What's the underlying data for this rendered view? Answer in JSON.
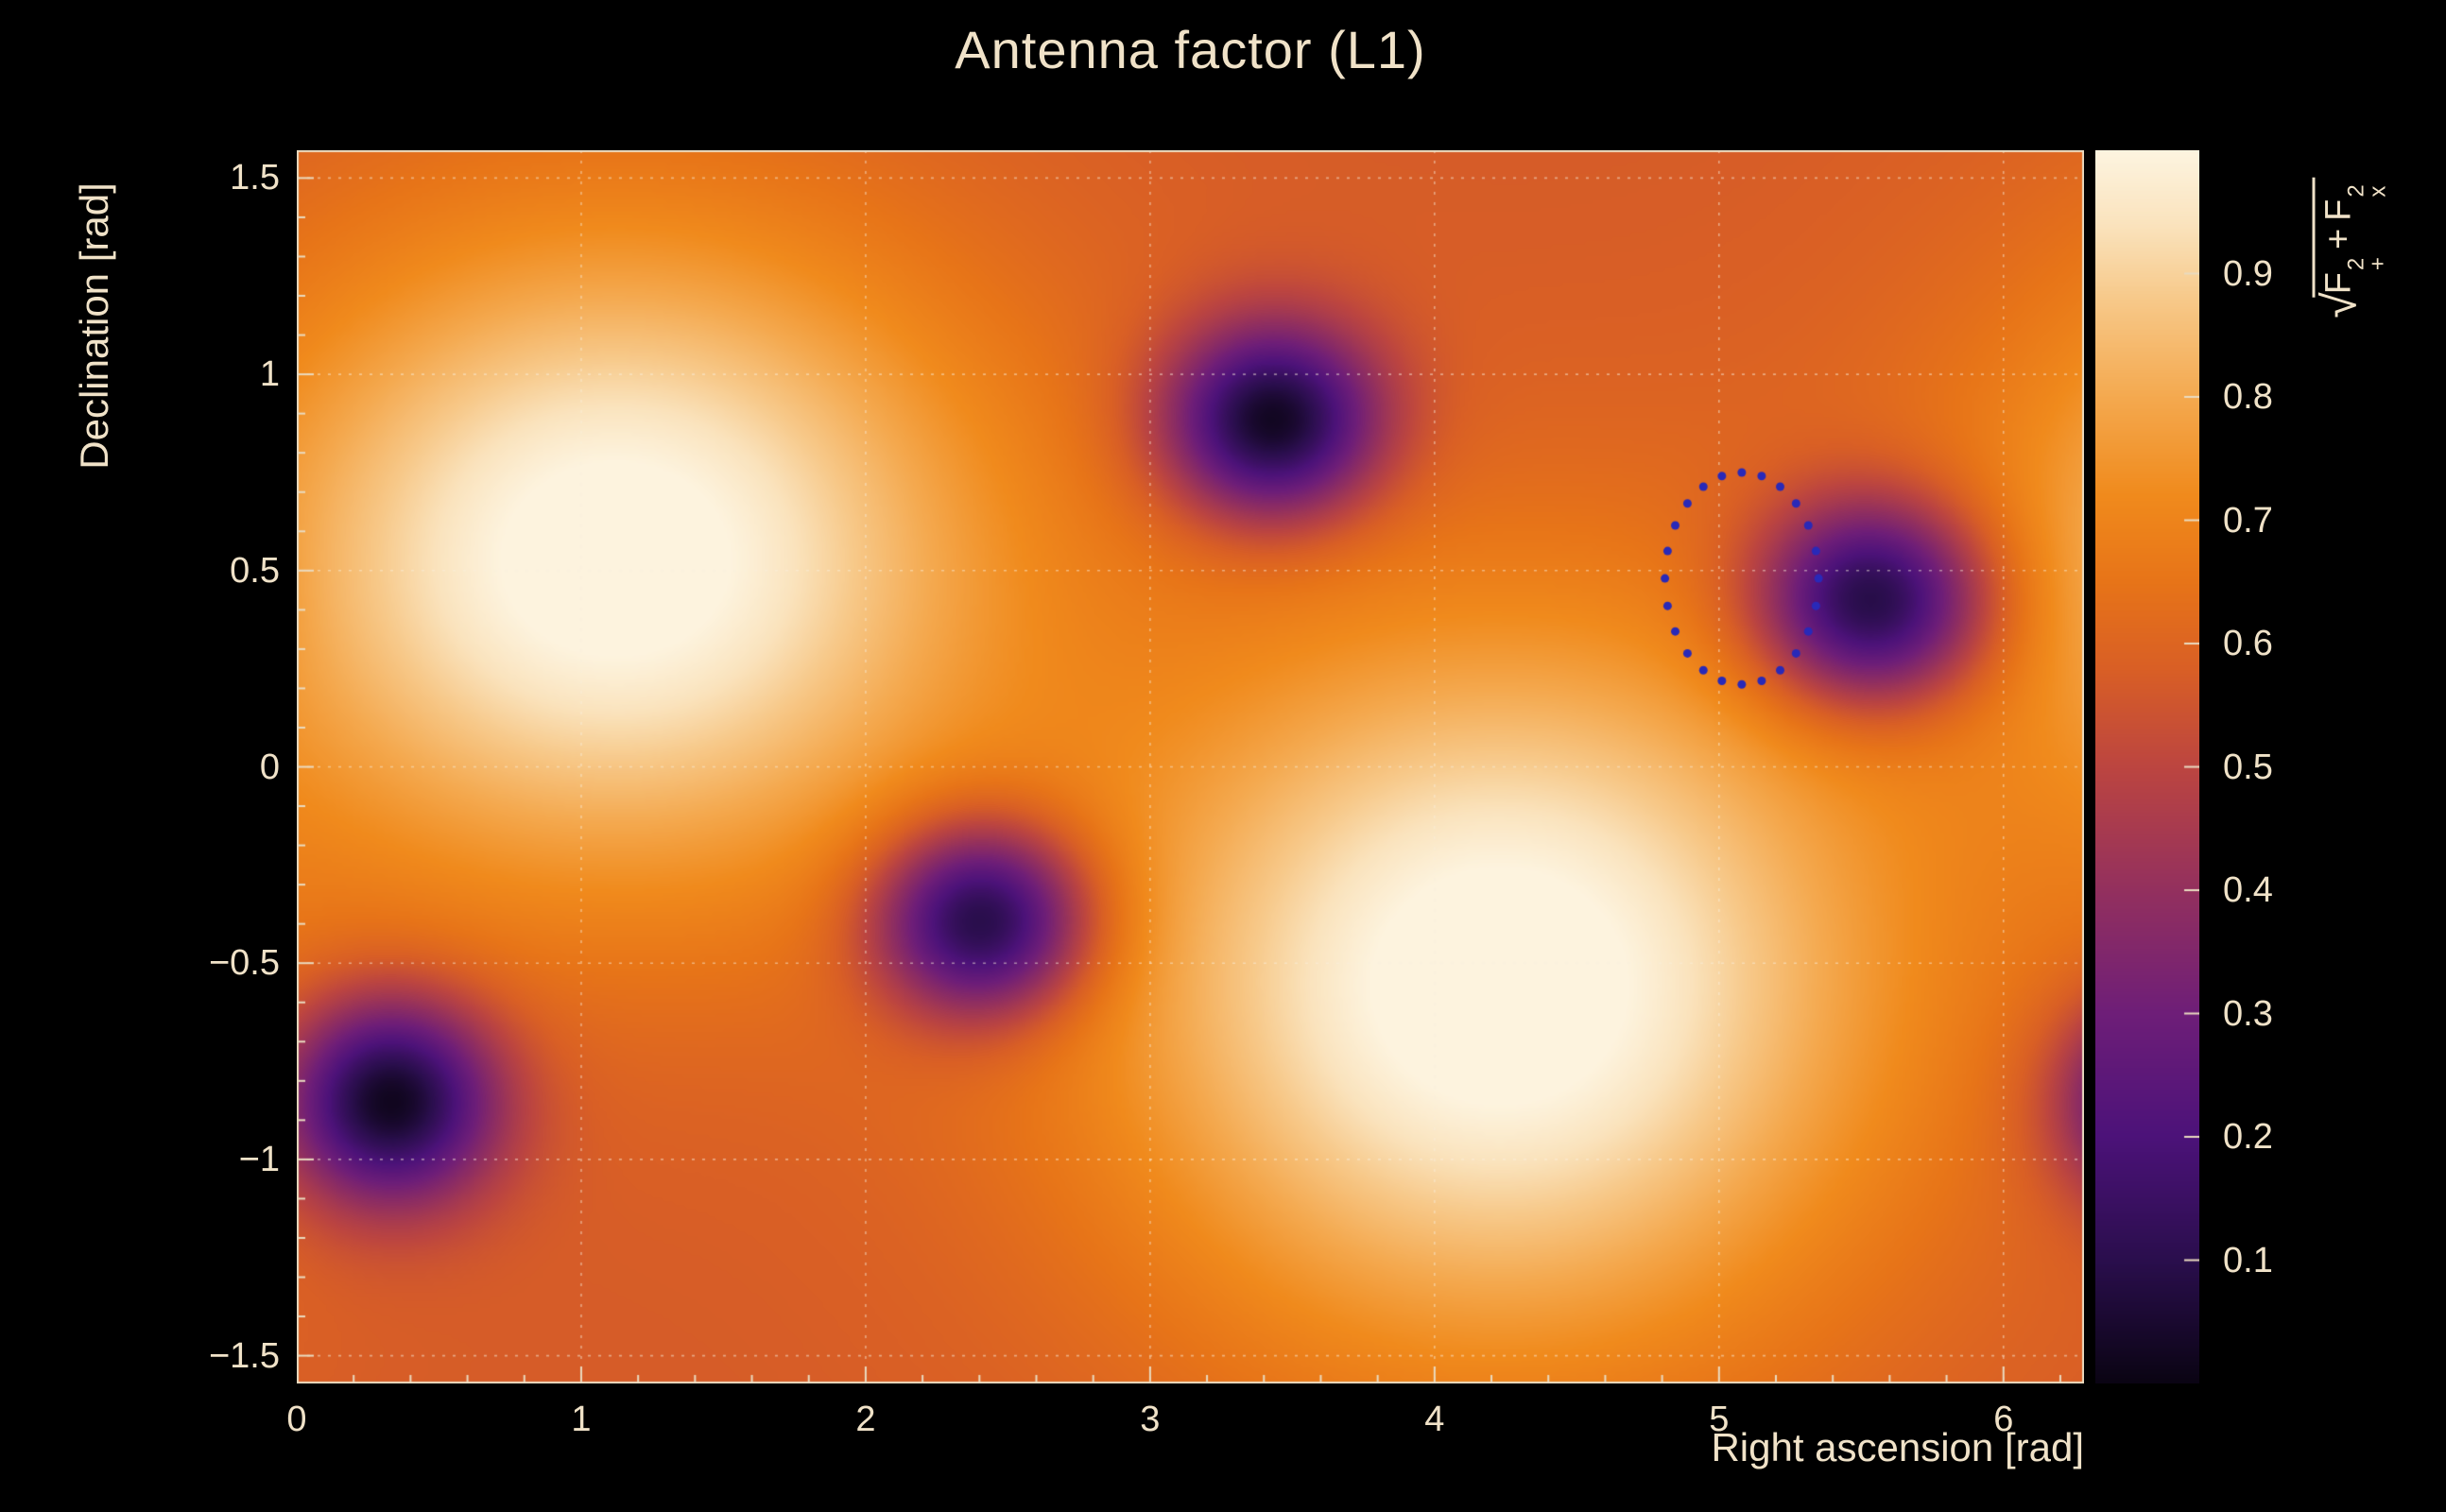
{
  "page": {
    "background": "#000000",
    "text_color": "#f0e2c8"
  },
  "chart_data": {
    "type": "heatmap",
    "title": "Antenna factor (L1)",
    "xlabel": "Right ascension [rad]",
    "ylabel": "Declination [rad]",
    "xlim": [
      0,
      6.2832
    ],
    "ylim": [
      -1.5708,
      1.5708
    ],
    "zlim": [
      0,
      1
    ],
    "grid": true,
    "x_ticks": {
      "values": [
        0,
        1,
        2,
        3,
        4,
        5,
        6
      ],
      "labels": [
        "0",
        "1",
        "2",
        "3",
        "4",
        "5",
        "6"
      ],
      "minor_step": 0.2
    },
    "y_ticks": {
      "values": [
        -1.5,
        -1,
        -0.5,
        0,
        0.5,
        1,
        1.5
      ],
      "labels": [
        "−1.5",
        "−1",
        "−0.5",
        "0",
        "0.5",
        "1",
        "1.5"
      ],
      "minor_step": 0.1
    },
    "colorbar": {
      "ticks": {
        "values": [
          0.1,
          0.2,
          0.3,
          0.4,
          0.5,
          0.6,
          0.7,
          0.8,
          0.9
        ],
        "labels": [
          "0.1",
          "0.2",
          "0.3",
          "0.4",
          "0.5",
          "0.6",
          "0.7",
          "0.8",
          "0.9"
        ]
      },
      "label": {
        "radical": "√",
        "term1": {
          "base": "F",
          "sup": "2",
          "sub": "+"
        },
        "plus": "+",
        "term2": {
          "base": "F",
          "sup": "2",
          "sub": "x"
        }
      }
    },
    "colormap": [
      [
        0.0,
        "#0a0413"
      ],
      [
        0.1,
        "#2a0e4d"
      ],
      [
        0.2,
        "#4c1279"
      ],
      [
        0.3,
        "#6e1e78"
      ],
      [
        0.4,
        "#93305e"
      ],
      [
        0.5,
        "#bc4540"
      ],
      [
        0.58,
        "#d95f25"
      ],
      [
        0.65,
        "#e77418"
      ],
      [
        0.72,
        "#f08a1c"
      ],
      [
        0.8,
        "#f4a94f"
      ],
      [
        0.88,
        "#f7c98a"
      ],
      [
        0.94,
        "#fae3bd"
      ],
      [
        1.0,
        "#fdf4e0"
      ]
    ],
    "field": {
      "base": 0.57,
      "maxima": [
        {
          "ra": 1.12,
          "dec": 0.53,
          "amp": 0.47,
          "sigma_ra": 0.9,
          "sigma_dec": 0.56
        },
        {
          "ra": 4.23,
          "dec": -0.56,
          "amp": 0.48,
          "sigma_ra": 0.92,
          "sigma_dec": 0.62
        }
      ],
      "minima": [
        {
          "ra": 3.43,
          "dec": 0.88,
          "amp": 0.58,
          "sigma_ra": 0.26,
          "sigma_dec": 0.17
        },
        {
          "ra": 5.54,
          "dec": 0.42,
          "amp": 0.58,
          "sigma_ra": 0.28,
          "sigma_dec": 0.18
        },
        {
          "ra": 2.41,
          "dec": -0.39,
          "amp": 0.58,
          "sigma_ra": 0.26,
          "sigma_dec": 0.17
        },
        {
          "ra": 0.33,
          "dec": -0.85,
          "amp": 0.58,
          "sigma_ra": 0.26,
          "sigma_dec": 0.18
        }
      ]
    },
    "annotation_circle": {
      "ra": 5.08,
      "dec": 0.48,
      "radius_rad": 0.27,
      "color": "#2929b8",
      "dot_count": 24,
      "dot_radius": 4.5
    },
    "style": {
      "frame_color": "#eadbc0",
      "tick_color": "#eadbc0",
      "grid_color": "rgba(250,240,222,0.5)"
    }
  }
}
